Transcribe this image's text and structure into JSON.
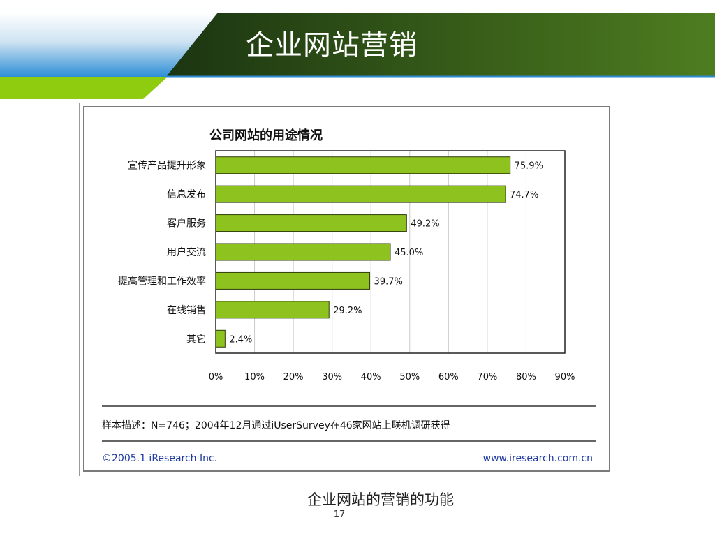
{
  "slide": {
    "title": "企业网站营销",
    "caption": "企业网站的营销的功能",
    "page_number": "17"
  },
  "colors": {
    "bar_fill": "#8dc21f",
    "bar_stroke": "#2f3d0c",
    "header_dark": "#1e3a12",
    "header_green": "#4d7a1f",
    "header_lime": "#8fcc10",
    "header_blue": "#3a98d8"
  },
  "chart_data": {
    "type": "bar",
    "orientation": "horizontal",
    "title": "公司网站的用途情况",
    "categories": [
      "宣传产品提升形象",
      "信息发布",
      "客户服务",
      "用户交流",
      "提高管理和工作效率",
      "在线销售",
      "其它"
    ],
    "values": [
      75.9,
      74.7,
      49.2,
      45.0,
      39.7,
      29.2,
      2.4
    ],
    "data_labels": [
      "75.9%",
      "74.7%",
      "49.2%",
      "45.0%",
      "39.7%",
      "29.2%",
      "2.4%"
    ],
    "xlim": [
      0,
      90
    ],
    "xticks": [
      "0%",
      "10%",
      "20%",
      "30%",
      "40%",
      "50%",
      "60%",
      "70%",
      "80%",
      "90%"
    ],
    "grid": true,
    "legend": "none",
    "footnote": "样本描述：N=746；2004年12月通过iUserSurvey在46家网站上联机调研获得",
    "copyright": "©2005.1 iResearch Inc.",
    "website": "www.iresearch.com.cn"
  }
}
